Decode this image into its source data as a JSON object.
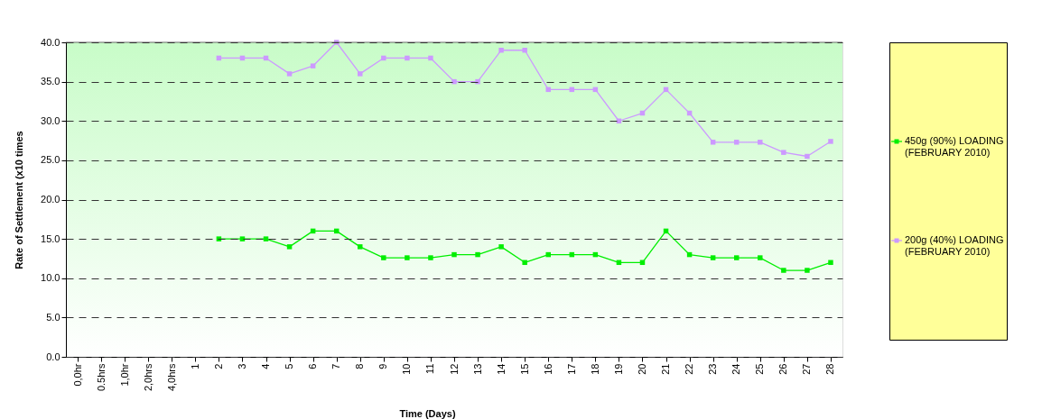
{
  "chart_data": {
    "type": "line",
    "xlabel": "Time (Days)",
    "ylabel": "Rate of Settlement (x10 times",
    "categories": [
      "0,0hr",
      "0.5hrs",
      "1,0hr",
      "2,0hrs",
      "4,0hrs",
      "1",
      "2",
      "3",
      "4",
      "5",
      "6",
      "7",
      "8",
      "9",
      "10",
      "11",
      "12",
      "13",
      "14",
      "15",
      "16",
      "17",
      "18",
      "19",
      "20",
      "21",
      "22",
      "23",
      "24",
      "25",
      "26",
      "27",
      "28"
    ],
    "series": [
      {
        "name": "450g (90%) LOADING\n(FEBRUARY 2010)",
        "color": "#00ee00",
        "values": [
          null,
          null,
          null,
          null,
          null,
          null,
          15,
          15,
          15,
          14,
          16,
          16,
          14,
          12.6,
          12.6,
          12.6,
          13,
          13,
          14,
          12,
          13,
          13,
          13,
          12,
          12,
          16,
          13,
          12.6,
          12.6,
          12.6,
          11,
          11,
          12
        ]
      },
      {
        "name": "200g (40%) LOADING\n(FEBRUARY 2010)",
        "color": "#cc99ff",
        "values": [
          null,
          null,
          null,
          null,
          null,
          null,
          38,
          38,
          38,
          36,
          37,
          40,
          36,
          38,
          38,
          38,
          35,
          35,
          39,
          39,
          34,
          34,
          34,
          30,
          31,
          34,
          31,
          27.3,
          27.3,
          27.3,
          26,
          25.5,
          27.4
        ]
      }
    ],
    "ylim": [
      0,
      40
    ],
    "yticks": [
      {
        "value": 0,
        "label": "0.0"
      },
      {
        "value": 5,
        "label": "5.0"
      },
      {
        "value": 10,
        "label": "10.0"
      },
      {
        "value": 15,
        "label": "15.0"
      },
      {
        "value": 20,
        "label": "20.0"
      },
      {
        "value": 25,
        "label": "25.0"
      },
      {
        "value": 30,
        "label": "30.0"
      },
      {
        "value": 35,
        "label": "35.0"
      },
      {
        "value": 40,
        "label": "40.0"
      }
    ],
    "grid": "y",
    "legend": "right",
    "marker": "square",
    "line_style": "solid"
  }
}
